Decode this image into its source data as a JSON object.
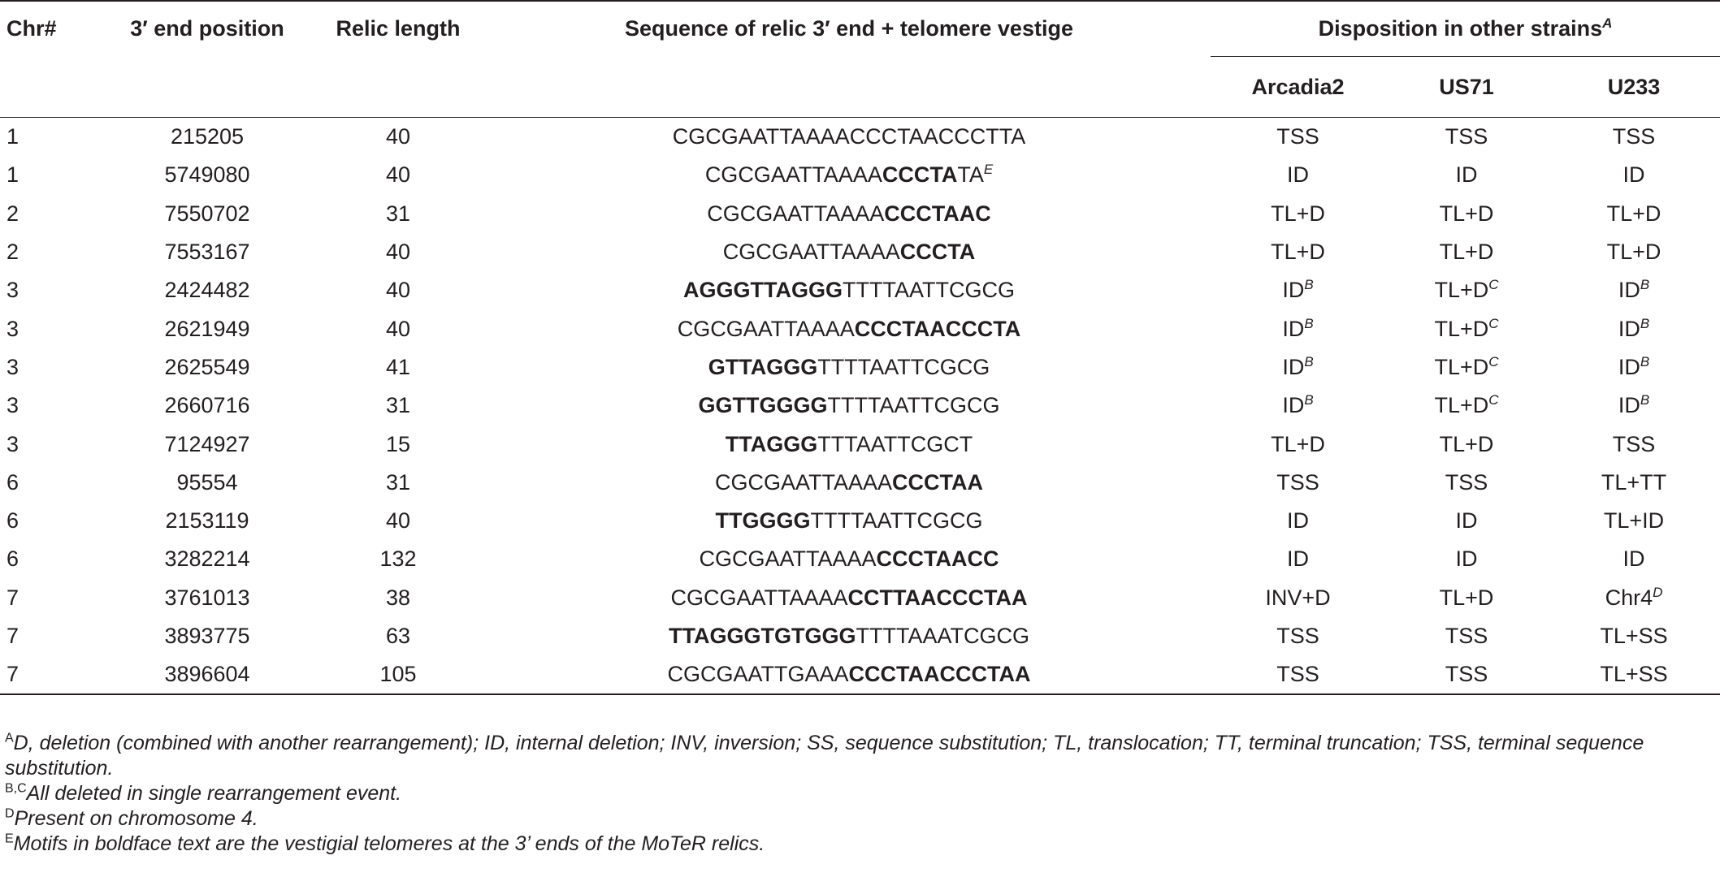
{
  "headers": {
    "chr": "Chr#",
    "pos": "3′ end position",
    "len": "Relic length",
    "seq": "Sequence of relic 3′ end + telomere vestige",
    "disp": "Disposition in other strains",
    "disp_sup": "A",
    "strains": [
      "Arcadia2",
      "US71",
      "U233"
    ]
  },
  "rows": [
    {
      "chr": "1",
      "pos": "215205",
      "len": "40",
      "seq_pre": "CGCGAATTAAAACCCTAACCCTTA",
      "seq_bold": "",
      "seq_post": "",
      "seq_sup": "",
      "a": "TSS",
      "a_sup": "",
      "u": "TSS",
      "u_sup": "",
      "v": "TSS",
      "v_sup": ""
    },
    {
      "chr": "1",
      "pos": "5749080",
      "len": "40",
      "seq_pre": "CGCGAATTAAAA",
      "seq_bold": "CCCTA",
      "seq_post": "TA",
      "seq_sup": "E",
      "a": "ID",
      "a_sup": "",
      "u": "ID",
      "u_sup": "",
      "v": "ID",
      "v_sup": ""
    },
    {
      "chr": "2",
      "pos": "7550702",
      "len": "31",
      "seq_pre": "CGCGAATTAAAA",
      "seq_bold": "CCCTAAC",
      "seq_post": "",
      "seq_sup": "",
      "a": "TL+D",
      "a_sup": "",
      "u": "TL+D",
      "u_sup": "",
      "v": "TL+D",
      "v_sup": ""
    },
    {
      "chr": "2",
      "pos": "7553167",
      "len": "40",
      "seq_pre": "CGCGAATTAAAA",
      "seq_bold": "CCCTA",
      "seq_post": "",
      "seq_sup": "",
      "a": "TL+D",
      "a_sup": "",
      "u": "TL+D",
      "u_sup": "",
      "v": "TL+D",
      "v_sup": ""
    },
    {
      "chr": "3",
      "pos": "2424482",
      "len": "40",
      "seq_pre": "",
      "seq_bold": "AGGGTTAGGG",
      "seq_post": "TTTTAATTCGCG",
      "seq_sup": "",
      "a": "ID",
      "a_sup": "B",
      "u": "TL+D",
      "u_sup": "C",
      "v": "ID",
      "v_sup": "B"
    },
    {
      "chr": "3",
      "pos": "2621949",
      "len": "40",
      "seq_pre": "CGCGAATTAAAA",
      "seq_bold": "CCCTAACCCTA",
      "seq_post": "",
      "seq_sup": "",
      "a": "ID",
      "a_sup": "B",
      "u": "TL+D",
      "u_sup": "C",
      "v": "ID",
      "v_sup": "B"
    },
    {
      "chr": "3",
      "pos": "2625549",
      "len": "41",
      "seq_pre": "",
      "seq_bold": "GTTAGGG",
      "seq_post": "TTTTAATTCGCG",
      "seq_sup": "",
      "a": "ID",
      "a_sup": "B",
      "u": "TL+D",
      "u_sup": "C",
      "v": "ID",
      "v_sup": "B"
    },
    {
      "chr": "3",
      "pos": "2660716",
      "len": "31",
      "seq_pre": "",
      "seq_bold": "GGTTGGGG",
      "seq_post": "TTTTAATTCGCG",
      "seq_sup": "",
      "a": "ID",
      "a_sup": "B",
      "u": "TL+D",
      "u_sup": "C",
      "v": "ID",
      "v_sup": "B"
    },
    {
      "chr": "3",
      "pos": "7124927",
      "len": "15",
      "seq_pre": "",
      "seq_bold": "TTAGGG",
      "seq_post": "TTTAATTCGCT",
      "seq_sup": "",
      "a": "TL+D",
      "a_sup": "",
      "u": "TL+D",
      "u_sup": "",
      "v": "TSS",
      "v_sup": ""
    },
    {
      "chr": "6",
      "pos": "95554",
      "len": "31",
      "seq_pre": "CGCGAATTAAAA",
      "seq_bold": "CCCTAA",
      "seq_post": "",
      "seq_sup": "",
      "a": "TSS",
      "a_sup": "",
      "u": "TSS",
      "u_sup": "",
      "v": "TL+TT",
      "v_sup": ""
    },
    {
      "chr": "6",
      "pos": "2153119",
      "len": "40",
      "seq_pre": "",
      "seq_bold": "TTGGGG",
      "seq_post": "TTTTAATTCGCG",
      "seq_sup": "",
      "a": "ID",
      "a_sup": "",
      "u": "ID",
      "u_sup": "",
      "v": "TL+ID",
      "v_sup": ""
    },
    {
      "chr": "6",
      "pos": "3282214",
      "len": "132",
      "seq_pre": "CGCGAATTAAAA",
      "seq_bold": "CCCTAACC",
      "seq_post": "",
      "seq_sup": "",
      "a": "ID",
      "a_sup": "",
      "u": "ID",
      "u_sup": "",
      "v": "ID",
      "v_sup": ""
    },
    {
      "chr": "7",
      "pos": "3761013",
      "len": "38",
      "seq_pre": "CGCGAATTAAAA",
      "seq_bold": "CCTTAACCCTAA",
      "seq_post": "",
      "seq_sup": "",
      "a": "INV+D",
      "a_sup": "",
      "u": "TL+D",
      "u_sup": "",
      "v": "Chr4",
      "v_sup": "D"
    },
    {
      "chr": "7",
      "pos": "3893775",
      "len": "63",
      "seq_pre": "",
      "seq_bold": "TTAGGGTGTGGG",
      "seq_post": "TTTTAAATCGCG",
      "seq_sup": "",
      "a": "TSS",
      "a_sup": "",
      "u": "TSS",
      "u_sup": "",
      "v": "TL+SS",
      "v_sup": ""
    },
    {
      "chr": "7",
      "pos": "3896604",
      "len": "105",
      "seq_pre": "CGCGAATTGAAA",
      "seq_bold": "CCCTAACCCTAA",
      "seq_post": "",
      "seq_sup": "",
      "a": "TSS",
      "a_sup": "",
      "u": "TSS",
      "u_sup": "",
      "v": "TL+SS",
      "v_sup": ""
    }
  ],
  "footnotes": [
    {
      "mark": "A",
      "text": "D, deletion (combined with another rearrangement); ID, internal deletion; INV, inversion; SS, sequence substitution; TL, translocation; TT, terminal truncation; TSS, terminal sequence substitution."
    },
    {
      "mark": "B,C",
      "text": "All deleted in single rearrangement event."
    },
    {
      "mark": "D",
      "text": "Present on chromosome 4."
    },
    {
      "mark": "E",
      "text": "Motifs in boldface text are the vestigial telomeres at the 3’ ends of the MoTeR relics."
    }
  ]
}
